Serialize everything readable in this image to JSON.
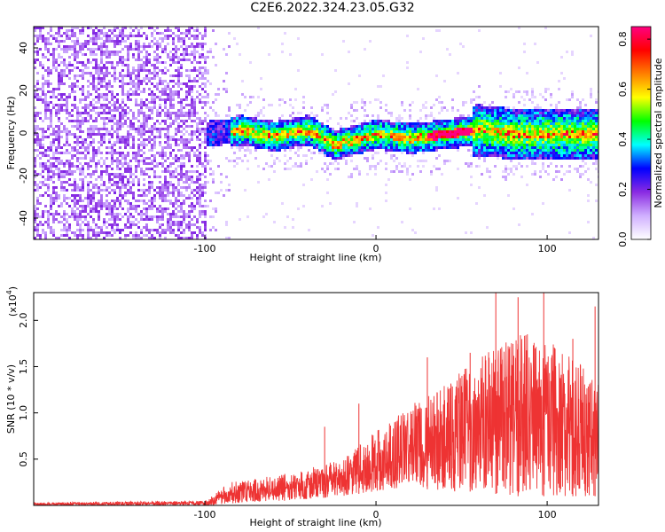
{
  "title": "C2E6.2022.324.23.05.G32",
  "chart_data": [
    {
      "type": "heatmap",
      "xlabel": "Height of straight line (km)",
      "ylabel": "Frequency (Hz)",
      "xlim": [
        -200,
        130
      ],
      "ylim": [
        -50,
        50
      ],
      "xticks": [
        -100,
        0,
        100
      ],
      "yticks": [
        -40,
        -20,
        0,
        20,
        40
      ],
      "colorbar": {
        "label": "Normalized spectral amplitude",
        "range": [
          0.0,
          0.85
        ],
        "ticks": [
          "0.0",
          "0.2",
          "0.4",
          "0.6",
          "0.8"
        ],
        "colors": [
          "#ffffff",
          "#d0b0ff",
          "#8a2be2",
          "#0000ff",
          "#00ffff",
          "#00ff00",
          "#ffff00",
          "#ff8000",
          "#ff0000",
          "#ff0080"
        ]
      },
      "band_center_hz": [
        {
          "x": -100,
          "y": 0
        },
        {
          "x": -80,
          "y": 2
        },
        {
          "x": -60,
          "y": -1
        },
        {
          "x": -40,
          "y": 2
        },
        {
          "x": -25,
          "y": -5
        },
        {
          "x": 0,
          "y": 0
        },
        {
          "x": 20,
          "y": -2
        },
        {
          "x": 40,
          "y": 0
        },
        {
          "x": 60,
          "y": 2
        },
        {
          "x": 80,
          "y": 0
        },
        {
          "x": 100,
          "y": 0
        },
        {
          "x": 130,
          "y": 0
        }
      ]
    },
    {
      "type": "line",
      "xlabel": "Height of straight line (km)",
      "ylabel": "SNR (10 * v/v)",
      "multiplier": "(x10",
      "multiplier_exp": "4",
      "multiplier_close": ")",
      "xlim": [
        -200,
        130
      ],
      "ylim": [
        0,
        2.3
      ],
      "xticks": [
        -100,
        0,
        100
      ],
      "yticks": [
        "0.5",
        "1.0",
        "1.5",
        "2.0"
      ],
      "color": "#ee3333",
      "envelope": [
        {
          "x": -200,
          "low": 0.0,
          "high": 0.03
        },
        {
          "x": -100,
          "low": 0.0,
          "high": 0.05
        },
        {
          "x": -85,
          "low": 0.02,
          "high": 0.25
        },
        {
          "x": -50,
          "low": 0.05,
          "high": 0.35
        },
        {
          "x": -20,
          "low": 0.1,
          "high": 0.5
        },
        {
          "x": 0,
          "low": 0.15,
          "high": 0.8
        },
        {
          "x": 20,
          "low": 0.2,
          "high": 1.1
        },
        {
          "x": 40,
          "low": 0.15,
          "high": 1.3
        },
        {
          "x": 60,
          "low": 0.15,
          "high": 1.6
        },
        {
          "x": 80,
          "low": 0.1,
          "high": 1.9
        },
        {
          "x": 100,
          "low": 0.1,
          "high": 1.8
        },
        {
          "x": 130,
          "low": 0.1,
          "high": 1.4
        }
      ],
      "peaks": [
        {
          "x": -30,
          "y": 0.85
        },
        {
          "x": -10,
          "y": 1.1
        },
        {
          "x": 30,
          "y": 1.6
        },
        {
          "x": 55,
          "y": 1.65
        },
        {
          "x": 70,
          "y": 2.3
        },
        {
          "x": 83,
          "y": 2.25
        },
        {
          "x": 98,
          "y": 2.35
        },
        {
          "x": 115,
          "y": 1.8
        },
        {
          "x": 128,
          "y": 2.15
        }
      ]
    }
  ]
}
